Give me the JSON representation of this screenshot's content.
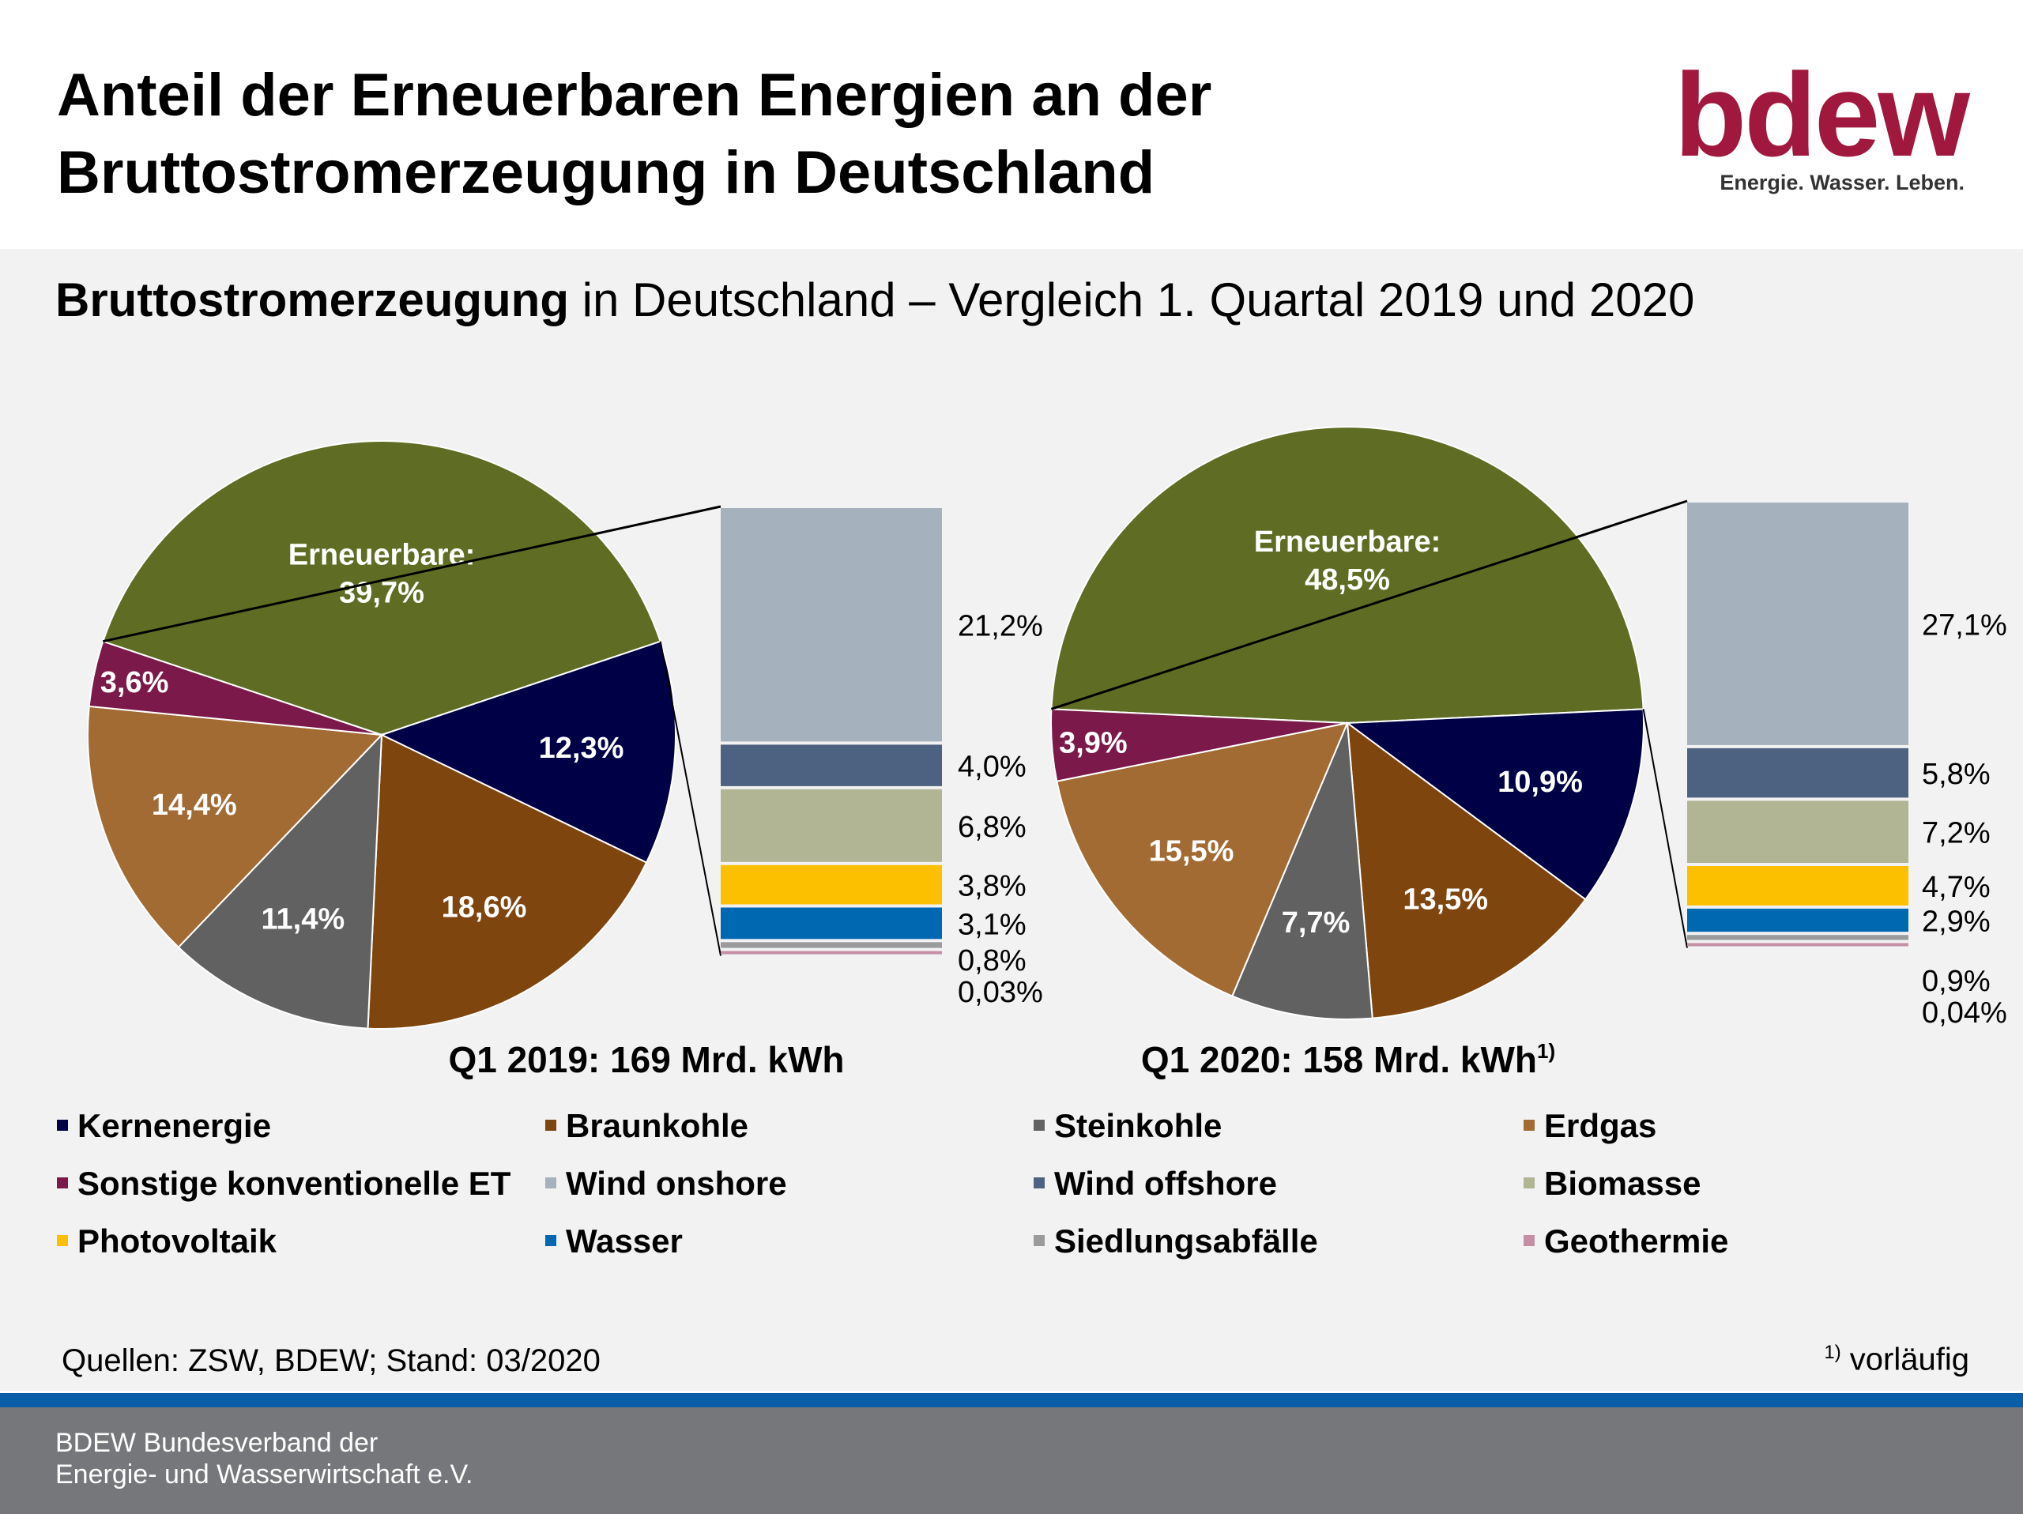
{
  "header": {
    "title_line1": "Anteil der Erneuerbaren Energien an der",
    "title_line2": "Bruttostromerzeugung in Deutschland",
    "logo_text": "bdew",
    "logo_tagline": "Energie. Wasser. Leben."
  },
  "subtitle": {
    "bold": "Bruttostromerzeugung",
    "rest": " in Deutschland – Vergleich 1. Quartal 2019 und 2020"
  },
  "colors": {
    "Kernenergie": "#000046",
    "Braunkohle": "#7f450f",
    "Steinkohle": "#616161",
    "Erdgas": "#a26b34",
    "Sonstige konventionelle ET": "#7b1a4a",
    "Erneuerbare": "#5f6d24",
    "Wind onshore": "#a6b1be",
    "Wind offshore": "#4d6180",
    "Biomasse": "#b1b593",
    "Photovoltaik": "#fcc000",
    "Wasser": "#0067b1",
    "Siedlungsabfälle": "#9a9b9d",
    "Geothermie": "#c48fa5",
    "logo": "#a0183e"
  },
  "chart_data": [
    {
      "type": "pie",
      "title": "Q1 2019: 169 Mrd. kWh",
      "title_sup": "",
      "categories": [
        "Erneuerbare",
        "Kernenergie",
        "Braunkohle",
        "Steinkohle",
        "Erdgas",
        "Sonstige konventionelle ET"
      ],
      "values": [
        39.7,
        12.3,
        18.6,
        11.4,
        14.4,
        3.6
      ],
      "labels": [
        "Erneuerbare:\n39,7%",
        "12,3%",
        "18,6%",
        "11,4%",
        "14,4%",
        "3,6%"
      ],
      "breakdown": {
        "type": "bar",
        "categories": [
          "Wind onshore",
          "Wind offshore",
          "Biomasse",
          "Photovoltaik",
          "Wasser",
          "Siedlungsabfälle",
          "Geothermie"
        ],
        "values": [
          21.2,
          4.0,
          6.8,
          3.8,
          3.1,
          0.8,
          0.03
        ],
        "labels": [
          "21,2%",
          "4,0%",
          "6,8%",
          "3,8%",
          "3,1%",
          "0,8%",
          "0,03%"
        ]
      }
    },
    {
      "type": "pie",
      "title": "Q1 2020: 158 Mrd. kWh",
      "title_sup": "1)",
      "categories": [
        "Erneuerbare",
        "Kernenergie",
        "Braunkohle",
        "Steinkohle",
        "Erdgas",
        "Sonstige konventionelle ET"
      ],
      "values": [
        48.5,
        10.9,
        13.5,
        7.7,
        15.5,
        3.9
      ],
      "labels": [
        "Erneuerbare:\n48,5%",
        "10,9%",
        "13,5%",
        "7,7%",
        "15,5%",
        "3,9%"
      ],
      "breakdown": {
        "type": "bar",
        "categories": [
          "Wind onshore",
          "Wind offshore",
          "Biomasse",
          "Photovoltaik",
          "Wasser",
          "Siedlungsabfälle",
          "Geothermie"
        ],
        "values": [
          27.1,
          5.8,
          7.2,
          4.7,
          2.9,
          0.9,
          0.04
        ],
        "labels": [
          "27,1%",
          "5,8%",
          "7,2%",
          "4,7%",
          "2,9%",
          "0,9%",
          "0,04%"
        ]
      }
    }
  ],
  "legend": [
    "Kernenergie",
    "Braunkohle",
    "Steinkohle",
    "Erdgas",
    "Sonstige konventionelle ET",
    "Wind onshore",
    "Wind offshore",
    "Biomasse",
    "Photovoltaik",
    "Wasser",
    "Siedlungsabfälle",
    "Geothermie"
  ],
  "sources": "Quellen: ZSW, BDEW; Stand: 03/2020",
  "footnote": {
    "marker": "1)",
    "text": " vorläufig"
  },
  "footer": {
    "line1": "BDEW Bundesverband der",
    "line2": "Energie- und Wasserwirtschaft e.V."
  }
}
